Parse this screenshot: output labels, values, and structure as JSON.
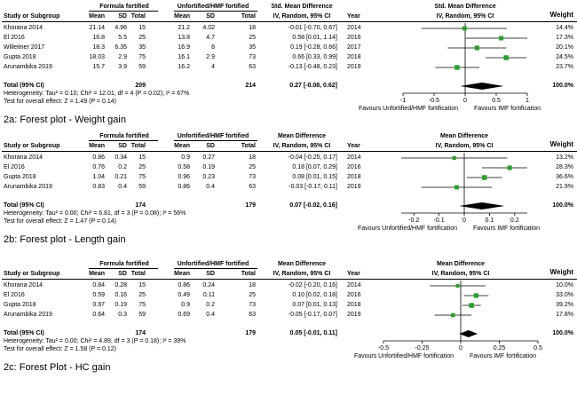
{
  "panels": [
    {
      "id": "2a",
      "caption": "2a:  Forest plot - Weight gain",
      "headers": {
        "study": "Study or Subgroup",
        "group1": "Formula fortified",
        "group2": "Unfortified/HMF fortified",
        "mean": "Mean",
        "sd": "SD",
        "total": "Total",
        "effect": "Std. Mean Difference",
        "effect_sub": "IV, Random, 95% CI",
        "year": "Year",
        "plot_title": "Std. Mean Difference",
        "plot_sub": "IV, Random, 95% CI",
        "weight": "Weight"
      },
      "rows": [
        {
          "study": "Khorana 2014",
          "m1": "21.14",
          "sd1": "4.96",
          "n1": "15",
          "m2": "21.2",
          "sd2": "4.02",
          "n2": "18",
          "ci": "-0.01 [-0.70, 0.67]",
          "year": "2014",
          "weight": "14.4%"
        },
        {
          "study": "El 2016",
          "m1": "16.8",
          "sd1": "5.5",
          "n1": "25",
          "m2": "13.8",
          "sd2": "4.7",
          "n2": "25",
          "ci": "0.58 [0.01, 1.14]",
          "year": "2016",
          "weight": "17.3%"
        },
        {
          "study": "Willeitner 2017",
          "m1": "18.3",
          "sd1": "6.35",
          "n1": "35",
          "m2": "16.9",
          "sd2": "8",
          "n2": "35",
          "ci": "0.19 [-0.28, 0.66]",
          "year": "2017",
          "weight": "20.1%"
        },
        {
          "study": "Gupta 2018",
          "m1": "18.03",
          "sd1": "2.9",
          "n1": "75",
          "m2": "16.1",
          "sd2": "2.9",
          "n2": "73",
          "ci": "0.66 [0.33, 0.99]",
          "year": "2018",
          "weight": "24.5%"
        },
        {
          "study": "Arunambika 2019",
          "m1": "15.7",
          "sd1": "3.9",
          "n1": "59",
          "m2": "16.2",
          "sd2": "4",
          "n2": "63",
          "ci": "-0.13 [-0.48, 0.23]",
          "year": "2019",
          "weight": "23.7%"
        }
      ],
      "total": {
        "label": "Total (95% CI)",
        "n1": "209",
        "n2": "214",
        "ci": "0.27 [-0.08, 0.62]",
        "weight": "100.0%"
      },
      "heterogeneity": "Heterogeneity: Tau² = 0.10; Chi² = 12.01, df = 4 (P = 0.02); I² = 67%",
      "overall": "Test for overall effect: Z = 1.49 (P = 0.14)",
      "favours_left": "Favours Unfortified/HMF fortification",
      "favours_right": "Favours IMF fortification"
    },
    {
      "id": "2b",
      "caption": "2b:  Forest plot - Length gain",
      "headers": {
        "study": "Study or Subgroup",
        "group1": "Formula fortified",
        "group2": "Unfortified/HMF fortified",
        "mean": "Mean",
        "sd": "SD",
        "total": "Total",
        "effect": "Mean Difference",
        "effect_sub": "IV, Random, 95% CI",
        "year": "Year",
        "plot_title": "Mean Difference",
        "plot_sub": "IV, Random, 95% CI",
        "weight": "Weight"
      },
      "rows": [
        {
          "study": "Khorana 2014",
          "m1": "0.86",
          "sd1": "0.34",
          "n1": "15",
          "m2": "0.9",
          "sd2": "0.27",
          "n2": "18",
          "ci": "-0.04 [-0.25, 0.17]",
          "year": "2014",
          "weight": "13.2%"
        },
        {
          "study": "El 2016",
          "m1": "0.76",
          "sd1": "0.2",
          "n1": "25",
          "m2": "0.58",
          "sd2": "0.19",
          "n2": "25",
          "ci": "0.18 [0.07, 0.29]",
          "year": "2016",
          "weight": "28.3%"
        },
        {
          "study": "Gupta 2018",
          "m1": "1.04",
          "sd1": "0.21",
          "n1": "75",
          "m2": "0.96",
          "sd2": "0.23",
          "n2": "73",
          "ci": "0.08 [0.01, 0.15]",
          "year": "2018",
          "weight": "36.6%"
        },
        {
          "study": "Arunambika 2019",
          "m1": "0.83",
          "sd1": "0.4",
          "n1": "59",
          "m2": "0.86",
          "sd2": "0.4",
          "n2": "63",
          "ci": "-0.03 [-0.17, 0.11]",
          "year": "2019",
          "weight": "21.9%"
        }
      ],
      "total": {
        "label": "Total (95% CI)",
        "n1": "174",
        "n2": "179",
        "ci": "0.07 [-0.02, 0.16]",
        "weight": "100.0%"
      },
      "heterogeneity": "Heterogeneity: Tau² = 0.00; Chi² = 6.81, df = 3 (P = 0.08); I² = 56%",
      "overall": "Test for overall effect: Z = 1.47 (P = 0.14)",
      "favours_left": "Favours Unfortified/HMF fortification",
      "favours_right": "Favours IMF fortification"
    },
    {
      "id": "2c",
      "caption": "2c:  Forest Plot - HC gain",
      "headers": {
        "study": "Study or Subgroup",
        "group1": "Formula fortified",
        "group2": "Unfortified/HMF fortified",
        "mean": "Mean",
        "sd": "SD",
        "total": "Total",
        "effect": "Mean Difference",
        "effect_sub": "IV, Random, 95% CI",
        "year": "Year",
        "plot_title": "Mean Difference",
        "plot_sub": "IV, Random, 95% CI",
        "weight": "Weight"
      },
      "rows": [
        {
          "study": "Khorana 2014",
          "m1": "0.84",
          "sd1": "0.28",
          "n1": "15",
          "m2": "0.86",
          "sd2": "0.24",
          "n2": "18",
          "ci": "-0.02 [-0.20, 0.16]",
          "year": "2014",
          "weight": "10.0%"
        },
        {
          "study": "El 2016",
          "m1": "0.59",
          "sd1": "0.16",
          "n1": "25",
          "m2": "0.49",
          "sd2": "0.11",
          "n2": "25",
          "ci": "0.10 [0.02, 0.18]",
          "year": "2016",
          "weight": "33.0%"
        },
        {
          "study": "Gupta 2018",
          "m1": "0.97",
          "sd1": "0.19",
          "n1": "75",
          "m2": "0.9",
          "sd2": "0.2",
          "n2": "73",
          "ci": "0.07 [0.01, 0.13]",
          "year": "2018",
          "weight": "39.2%"
        },
        {
          "study": "Arunambika 2019",
          "m1": "0.64",
          "sd1": "0.3",
          "n1": "59",
          "m2": "0.69",
          "sd2": "0.4",
          "n2": "63",
          "ci": "-0.05 [-0.17, 0.07]",
          "year": "2019",
          "weight": "17.8%"
        }
      ],
      "total": {
        "label": "Total (95% CI)",
        "n1": "174",
        "n2": "179",
        "ci": "0.05 [-0.01, 0.11]",
        "weight": "100.0%"
      },
      "heterogeneity": "Heterogeneity: Tau² = 0.00; Chi² = 4.89, df = 3 (P = 0.18); I² = 39%",
      "overall": "Test for overall effect: Z = 1.58 (P = 0.12)",
      "favours_left": "Favours Unfortified/HMF fortification",
      "favours_right": "Favours IMF fortification"
    }
  ],
  "chart_data": [
    {
      "type": "scatter",
      "title": "",
      "xlim": [
        -1,
        1
      ],
      "ticks": [
        "-1",
        "-0.5",
        "0",
        "0.5",
        "1"
      ],
      "tick_values": [
        -1,
        -0.5,
        0,
        0.5,
        1
      ],
      "studies": [
        {
          "name": "Khorana 2014",
          "est": -0.01,
          "lo": -0.7,
          "hi": 0.67,
          "weight": 14.4
        },
        {
          "name": "El 2016",
          "est": 0.58,
          "lo": 0.01,
          "hi": 1.14,
          "weight": 17.3
        },
        {
          "name": "Willeitner 2017",
          "est": 0.19,
          "lo": -0.28,
          "hi": 0.66,
          "weight": 20.1
        },
        {
          "name": "Gupta 2018",
          "est": 0.66,
          "lo": 0.33,
          "hi": 0.99,
          "weight": 24.5
        },
        {
          "name": "Arunambika 2019",
          "est": -0.13,
          "lo": -0.48,
          "hi": 0.23,
          "weight": 23.7
        }
      ],
      "pooled": {
        "est": 0.27,
        "lo": -0.08,
        "hi": 0.62
      },
      "marker_color": "#2ca02c"
    },
    {
      "type": "scatter",
      "title": "",
      "xlim": [
        -0.25,
        0.25
      ],
      "ticks": [
        "-0.2",
        "-0.1",
        "0",
        "0.1",
        "0.2"
      ],
      "tick_values": [
        -0.2,
        -0.1,
        0,
        0.1,
        0.2
      ],
      "studies": [
        {
          "name": "Khorana 2014",
          "est": -0.04,
          "lo": -0.25,
          "hi": 0.17,
          "weight": 13.2
        },
        {
          "name": "El 2016",
          "est": 0.18,
          "lo": 0.07,
          "hi": 0.29,
          "weight": 28.3
        },
        {
          "name": "Gupta 2018",
          "est": 0.08,
          "lo": 0.01,
          "hi": 0.15,
          "weight": 36.6
        },
        {
          "name": "Arunambika 2019",
          "est": -0.03,
          "lo": -0.17,
          "hi": 0.11,
          "weight": 21.9
        }
      ],
      "pooled": {
        "est": 0.07,
        "lo": -0.02,
        "hi": 0.16
      },
      "marker_color": "#2ca02c"
    },
    {
      "type": "scatter",
      "title": "",
      "xlim": [
        -0.5,
        0.5
      ],
      "ticks": [
        "-0.5",
        "-0.25",
        "0",
        "0.25",
        "0.5"
      ],
      "tick_values": [
        -0.5,
        -0.25,
        0,
        0.25,
        0.5
      ],
      "studies": [
        {
          "name": "Khorana 2014",
          "est": -0.02,
          "lo": -0.2,
          "hi": 0.16,
          "weight": 10.0
        },
        {
          "name": "El 2016",
          "est": 0.1,
          "lo": 0.02,
          "hi": 0.18,
          "weight": 33.0
        },
        {
          "name": "Gupta 2018",
          "est": 0.07,
          "lo": 0.01,
          "hi": 0.13,
          "weight": 39.2
        },
        {
          "name": "Arunambika 2019",
          "est": -0.05,
          "lo": -0.17,
          "hi": 0.07,
          "weight": 17.8
        }
      ],
      "pooled": {
        "est": 0.05,
        "lo": -0.01,
        "hi": 0.11
      },
      "marker_color": "#2ca02c"
    }
  ]
}
